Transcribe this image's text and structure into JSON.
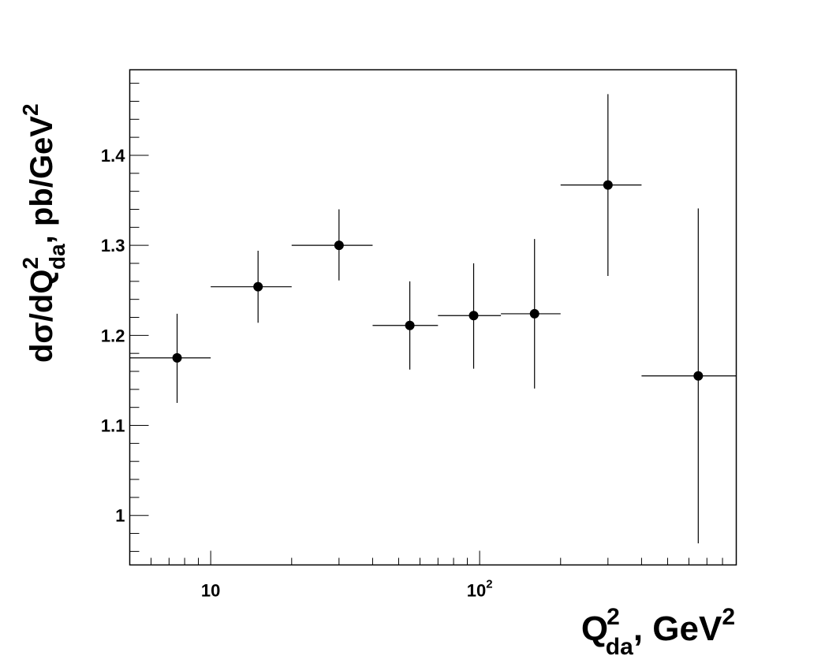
{
  "chart_data": {
    "type": "scatter",
    "xlabel": {
      "base": "Q",
      "sup": "2",
      "sub": "da",
      "rest": ", GeV",
      "rest_sup": "2"
    },
    "ylabel": {
      "pre": "dσ/dQ",
      "sup": "2",
      "sub": "da",
      "rest": ", pb/GeV",
      "rest_sup": "2"
    },
    "xscale": "log",
    "xlim": [
      5,
      900
    ],
    "ylim": [
      0.945,
      1.495
    ],
    "x_ticks": [
      {
        "label": "10",
        "value": 10
      },
      {
        "label": "10",
        "sup": "2",
        "value": 100
      }
    ],
    "y_ticks": [
      {
        "label": "1",
        "value": 1.0
      },
      {
        "label": "1.1",
        "value": 1.1
      },
      {
        "label": "1.2",
        "value": 1.2
      },
      {
        "label": "1.3",
        "value": 1.3
      },
      {
        "label": "1.4",
        "value": 1.4
      }
    ],
    "points": [
      {
        "x": 7.5,
        "y": 1.175,
        "xlow": 5,
        "xhigh": 10,
        "ylow": 1.125,
        "yhigh": 1.224
      },
      {
        "x": 15,
        "y": 1.254,
        "xlow": 10,
        "xhigh": 20,
        "ylow": 1.214,
        "yhigh": 1.294
      },
      {
        "x": 30,
        "y": 1.3,
        "xlow": 20,
        "xhigh": 40,
        "ylow": 1.261,
        "yhigh": 1.34
      },
      {
        "x": 55,
        "y": 1.211,
        "xlow": 40,
        "xhigh": 70,
        "ylow": 1.162,
        "yhigh": 1.26
      },
      {
        "x": 95,
        "y": 1.222,
        "xlow": 70,
        "xhigh": 120,
        "ylow": 1.163,
        "yhigh": 1.28
      },
      {
        "x": 160,
        "y": 1.224,
        "xlow": 120,
        "xhigh": 200,
        "ylow": 1.141,
        "yhigh": 1.307
      },
      {
        "x": 300,
        "y": 1.367,
        "xlow": 200,
        "xhigh": 400,
        "ylow": 1.266,
        "yhigh": 1.468
      },
      {
        "x": 650,
        "y": 1.155,
        "xlow": 400,
        "xhigh": 900,
        "ylow": 0.969,
        "yhigh": 1.341
      }
    ],
    "grid": false,
    "legend": "none",
    "marker_color": "#000000"
  }
}
